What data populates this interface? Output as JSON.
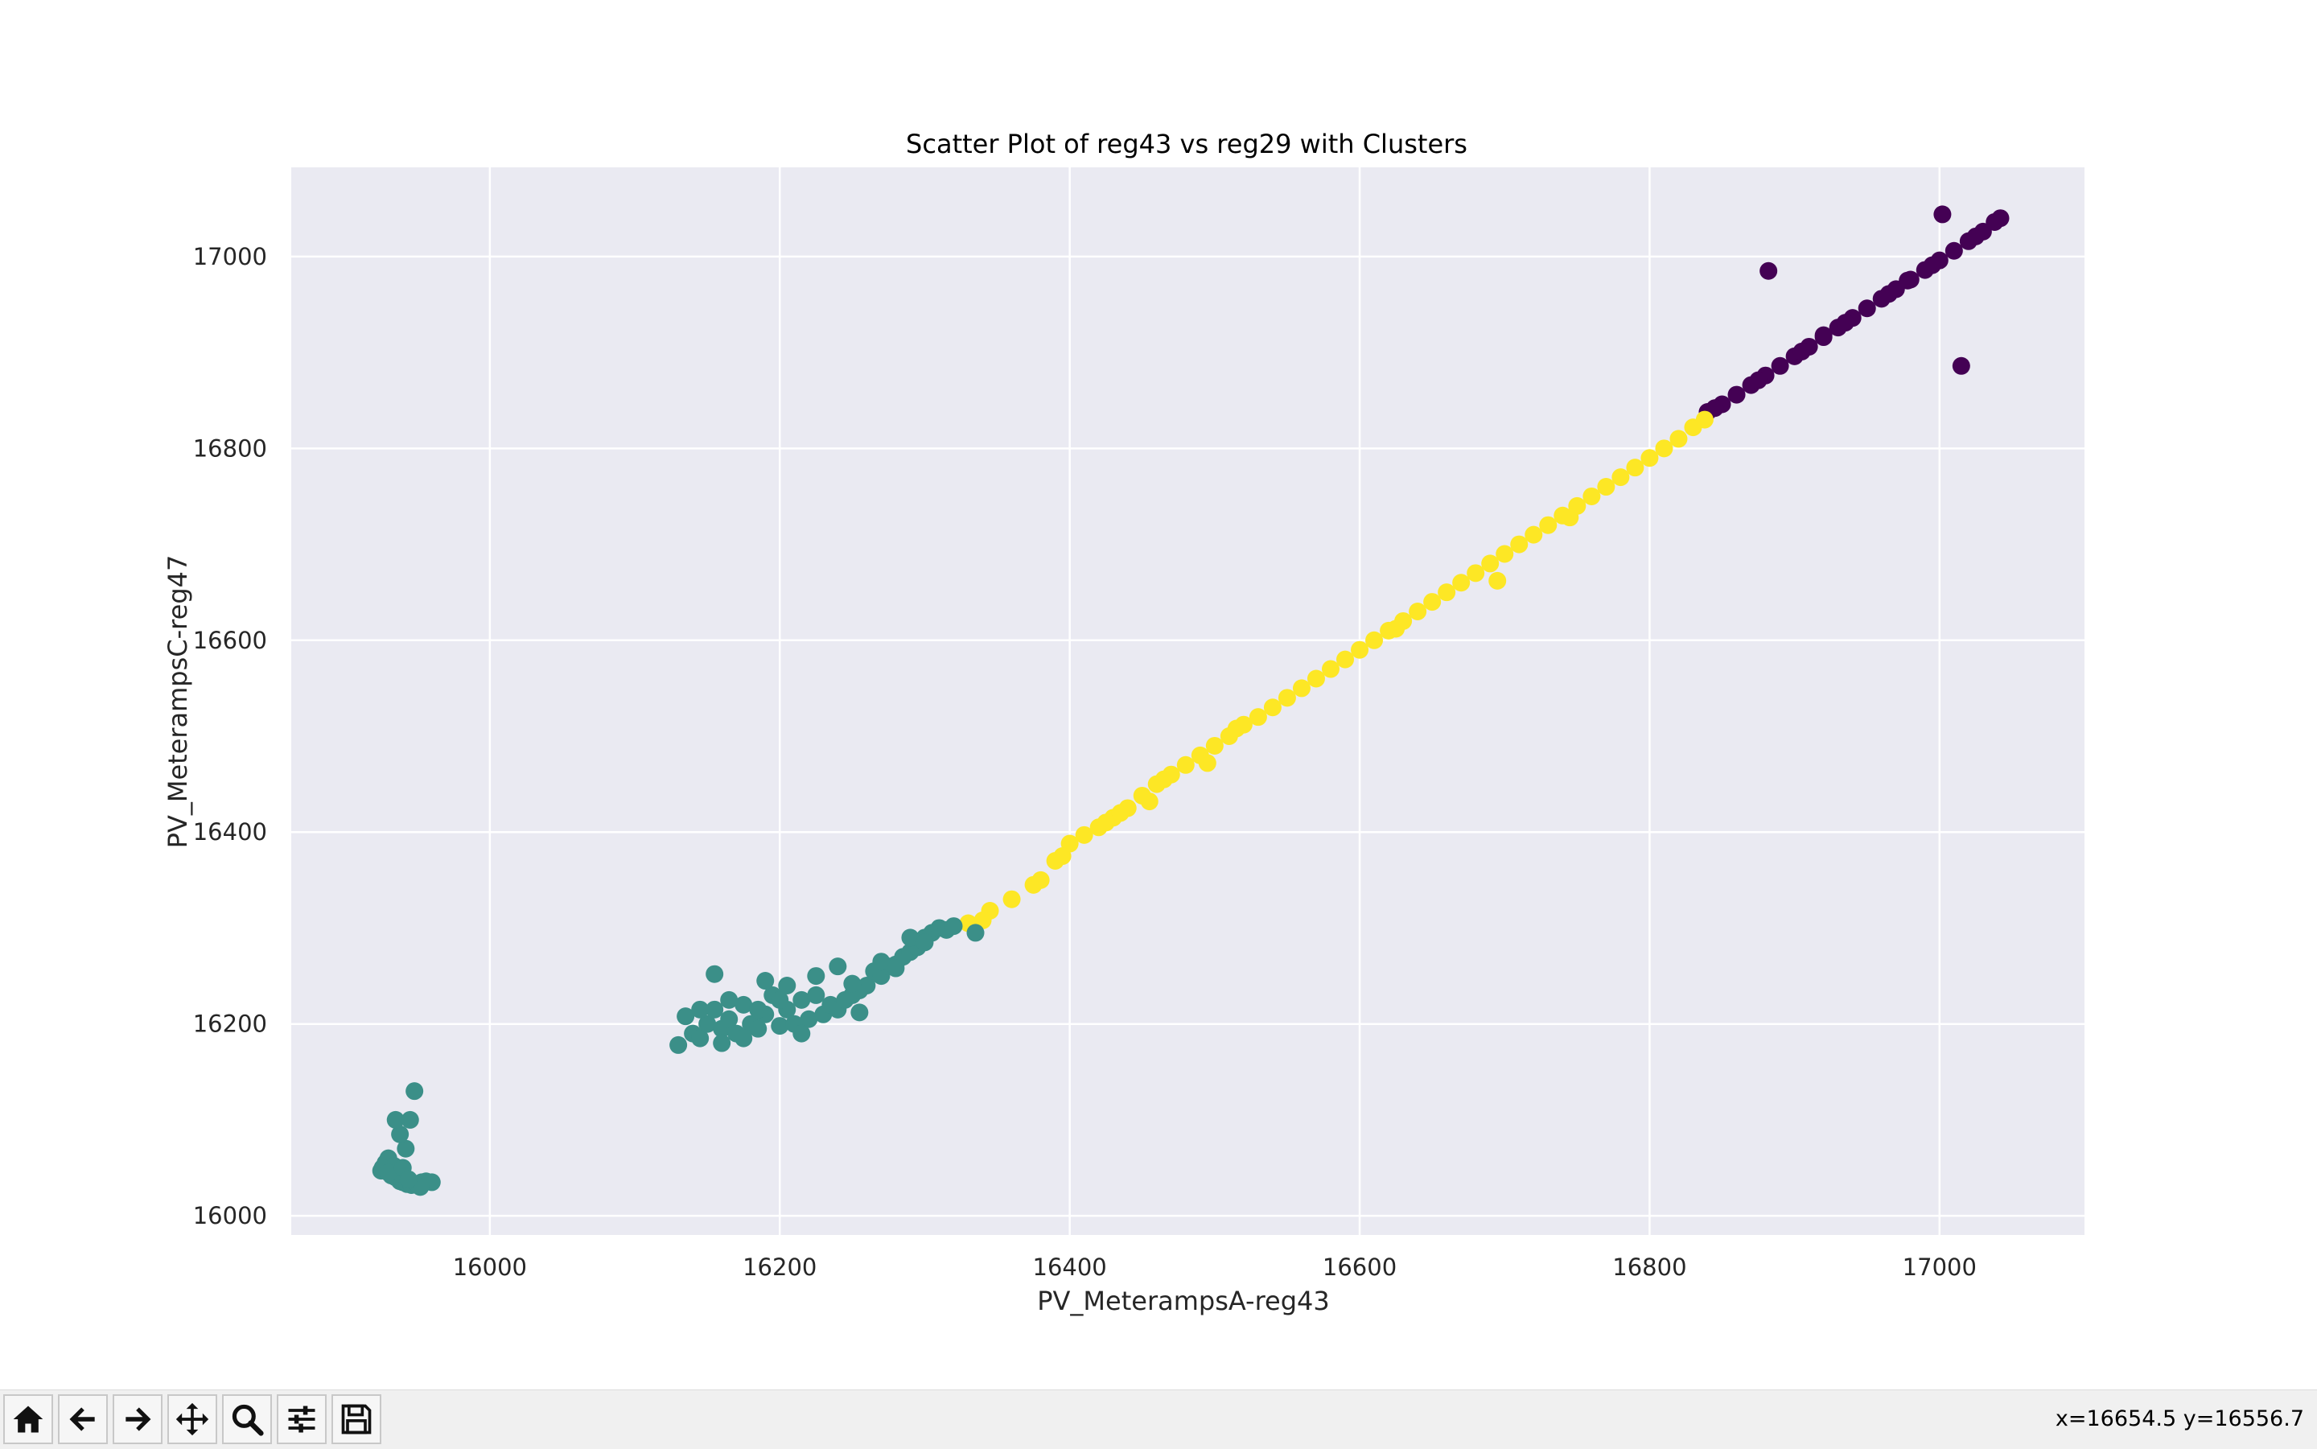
{
  "toolbar": {
    "buttons": [
      {
        "icon": "home-icon",
        "name": "home-button"
      },
      {
        "icon": "back-arrow-icon",
        "name": "back-button"
      },
      {
        "icon": "forward-arrow-icon",
        "name": "forward-button"
      },
      {
        "icon": "pan-icon",
        "name": "pan-button"
      },
      {
        "icon": "zoom-icon",
        "name": "zoom-button"
      },
      {
        "icon": "configure-subplots-icon",
        "name": "configure-subplots-button"
      },
      {
        "icon": "save-icon",
        "name": "save-button"
      }
    ],
    "coords": "x=16654.5 y=16556.7"
  },
  "chart_data": {
    "type": "scatter",
    "title": "Scatter Plot of reg43 vs reg29 with Clusters",
    "xlabel": "PV_MeterampsA-reg43",
    "ylabel": "PV_MeterampsC-reg47",
    "xlim": [
      15863,
      17100
    ],
    "ylim": [
      15980,
      17093
    ],
    "xticks": [
      16000,
      16200,
      16400,
      16600,
      16800,
      17000
    ],
    "yticks": [
      16000,
      16200,
      16400,
      16600,
      16800,
      17000
    ],
    "grid": true,
    "colors": {
      "background": "#eaeaf2",
      "grid": "#ffffff"
    },
    "series": [
      {
        "color": "#440154",
        "points": [
          [
            16840,
            16838
          ],
          [
            16850,
            16846
          ],
          [
            16860,
            16856
          ],
          [
            16870,
            16866
          ],
          [
            16880,
            16876
          ],
          [
            16890,
            16886
          ],
          [
            16900,
            16896
          ],
          [
            16910,
            16906
          ],
          [
            16920,
            16916
          ],
          [
            16930,
            16926
          ],
          [
            16940,
            16936
          ],
          [
            16950,
            16946
          ],
          [
            16960,
            16956
          ],
          [
            16970,
            16966
          ],
          [
            16980,
            16976
          ],
          [
            16990,
            16986
          ],
          [
            17000,
            16996
          ],
          [
            17010,
            17006
          ],
          [
            17020,
            17016
          ],
          [
            17030,
            17026
          ],
          [
            17042,
            17040
          ],
          [
            16845,
            16842
          ],
          [
            16875,
            16871
          ],
          [
            16905,
            16901
          ],
          [
            16935,
            16931
          ],
          [
            16965,
            16961
          ],
          [
            16995,
            16991
          ],
          [
            17025,
            17021
          ],
          [
            17038,
            17036
          ],
          [
            16920,
            16918
          ],
          [
            16978,
            16975
          ],
          [
            16882,
            16985
          ],
          [
            17002,
            17044
          ],
          [
            17015,
            16886
          ]
        ]
      },
      {
        "color": "#fde725",
        "points": [
          [
            16330,
            16305
          ],
          [
            16345,
            16318
          ],
          [
            16360,
            16330
          ],
          [
            16375,
            16345
          ],
          [
            16390,
            16370
          ],
          [
            16400,
            16388
          ],
          [
            16410,
            16397
          ],
          [
            16420,
            16405
          ],
          [
            16430,
            16415
          ],
          [
            16440,
            16425
          ],
          [
            16450,
            16438
          ],
          [
            16460,
            16450
          ],
          [
            16470,
            16460
          ],
          [
            16480,
            16470
          ],
          [
            16490,
            16480
          ],
          [
            16500,
            16490
          ],
          [
            16510,
            16500
          ],
          [
            16520,
            16512
          ],
          [
            16530,
            16520
          ],
          [
            16540,
            16530
          ],
          [
            16550,
            16540
          ],
          [
            16560,
            16550
          ],
          [
            16570,
            16560
          ],
          [
            16580,
            16570
          ],
          [
            16590,
            16580
          ],
          [
            16600,
            16590
          ],
          [
            16610,
            16600
          ],
          [
            16620,
            16610
          ],
          [
            16630,
            16620
          ],
          [
            16640,
            16630
          ],
          [
            16650,
            16640
          ],
          [
            16660,
            16650
          ],
          [
            16670,
            16660
          ],
          [
            16680,
            16670
          ],
          [
            16690,
            16680
          ],
          [
            16700,
            16690
          ],
          [
            16710,
            16700
          ],
          [
            16720,
            16710
          ],
          [
            16730,
            16720
          ],
          [
            16740,
            16730
          ],
          [
            16750,
            16740
          ],
          [
            16760,
            16750
          ],
          [
            16770,
            16760
          ],
          [
            16780,
            16770
          ],
          [
            16790,
            16780
          ],
          [
            16800,
            16790
          ],
          [
            16810,
            16800
          ],
          [
            16820,
            16810
          ],
          [
            16830,
            16822
          ],
          [
            16838,
            16830
          ],
          [
            16340,
            16308
          ],
          [
            16380,
            16350
          ],
          [
            16395,
            16375
          ],
          [
            16425,
            16410
          ],
          [
            16455,
            16432
          ],
          [
            16495,
            16472
          ],
          [
            16515,
            16508
          ],
          [
            16625,
            16612
          ],
          [
            16695,
            16662
          ],
          [
            16745,
            16728
          ],
          [
            16435,
            16420
          ],
          [
            16465,
            16455
          ]
        ]
      },
      {
        "color": "#3b8f88",
        "points": [
          [
            15925,
            16047
          ],
          [
            15928,
            16055
          ],
          [
            15932,
            16042
          ],
          [
            15935,
            16040
          ],
          [
            15938,
            16036
          ],
          [
            15940,
            16035
          ],
          [
            15943,
            16033
          ],
          [
            15946,
            16032
          ],
          [
            15950,
            16033
          ],
          [
            15953,
            16035
          ],
          [
            15956,
            16036
          ],
          [
            15930,
            16060
          ],
          [
            15934,
            16052
          ],
          [
            15942,
            16070
          ],
          [
            15938,
            16085
          ],
          [
            15935,
            16100
          ],
          [
            15945,
            16100
          ],
          [
            15948,
            16130
          ],
          [
            15926,
            16050
          ],
          [
            15930,
            16045
          ],
          [
            15960,
            16035
          ],
          [
            15952,
            16030
          ],
          [
            15940,
            16050
          ],
          [
            15944,
            16038
          ],
          [
            16130,
            16178
          ],
          [
            16135,
            16208
          ],
          [
            16140,
            16190
          ],
          [
            16145,
            16185
          ],
          [
            16150,
            16200
          ],
          [
            16155,
            16215
          ],
          [
            16160,
            16195
          ],
          [
            16165,
            16205
          ],
          [
            16170,
            16190
          ],
          [
            16175,
            16220
          ],
          [
            16180,
            16200
          ],
          [
            16185,
            16195
          ],
          [
            16190,
            16210
          ],
          [
            16195,
            16230
          ],
          [
            16200,
            16198
          ],
          [
            16205,
            16215
          ],
          [
            16210,
            16200
          ],
          [
            16215,
            16225
          ],
          [
            16220,
            16205
          ],
          [
            16225,
            16230
          ],
          [
            16230,
            16210
          ],
          [
            16235,
            16220
          ],
          [
            16240,
            16215
          ],
          [
            16245,
            16225
          ],
          [
            16250,
            16230
          ],
          [
            16255,
            16235
          ],
          [
            16260,
            16240
          ],
          [
            16265,
            16255
          ],
          [
            16270,
            16250
          ],
          [
            16275,
            16260
          ],
          [
            16280,
            16262
          ],
          [
            16285,
            16270
          ],
          [
            16290,
            16275
          ],
          [
            16295,
            16280
          ],
          [
            16300,
            16290
          ],
          [
            16305,
            16295
          ],
          [
            16310,
            16300
          ],
          [
            16315,
            16298
          ],
          [
            16320,
            16302
          ],
          [
            16155,
            16252
          ],
          [
            16175,
            16185
          ],
          [
            16190,
            16245
          ],
          [
            16205,
            16240
          ],
          [
            16225,
            16250
          ],
          [
            16240,
            16260
          ],
          [
            16255,
            16212
          ],
          [
            16335,
            16295
          ],
          [
            16290,
            16290
          ],
          [
            16145,
            16215
          ],
          [
            16165,
            16225
          ],
          [
            16185,
            16215
          ],
          [
            16200,
            16225
          ],
          [
            16215,
            16190
          ],
          [
            16160,
            16180
          ],
          [
            16250,
            16242
          ],
          [
            16270,
            16265
          ],
          [
            16280,
            16258
          ],
          [
            16300,
            16285
          ]
        ]
      }
    ]
  }
}
